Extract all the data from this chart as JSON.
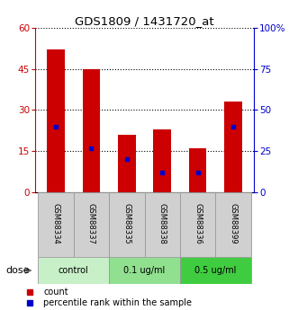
{
  "title": "GDS1809 / 1431720_at",
  "samples": [
    "GSM88334",
    "GSM88337",
    "GSM88335",
    "GSM88338",
    "GSM88336",
    "GSM88399"
  ],
  "count_values": [
    52,
    45,
    21,
    23,
    16,
    33
  ],
  "percentile_values": [
    40,
    27,
    20,
    12,
    12,
    40
  ],
  "groups": [
    {
      "label": "control",
      "indices": [
        0,
        1
      ],
      "color": "#c8f0c8"
    },
    {
      "label": "0.1 ug/ml",
      "indices": [
        2,
        3
      ],
      "color": "#90e090"
    },
    {
      "label": "0.5 ug/ml",
      "indices": [
        4,
        5
      ],
      "color": "#40cc40"
    }
  ],
  "bar_color": "#cc0000",
  "marker_color": "#0000cc",
  "left_axis_color": "#cc0000",
  "right_axis_color": "#0000cc",
  "ylim_left": [
    0,
    60
  ],
  "ylim_right": [
    0,
    100
  ],
  "yticks_left": [
    0,
    15,
    30,
    45,
    60
  ],
  "yticks_right": [
    0,
    25,
    50,
    75,
    100
  ],
  "bar_width": 0.5,
  "dose_label": "dose",
  "legend_count": "count",
  "legend_percentile": "percentile rank within the sample",
  "bg_color": "#ffffff",
  "plot_bg_color": "#ffffff",
  "sample_bg": "#d0d0d0"
}
